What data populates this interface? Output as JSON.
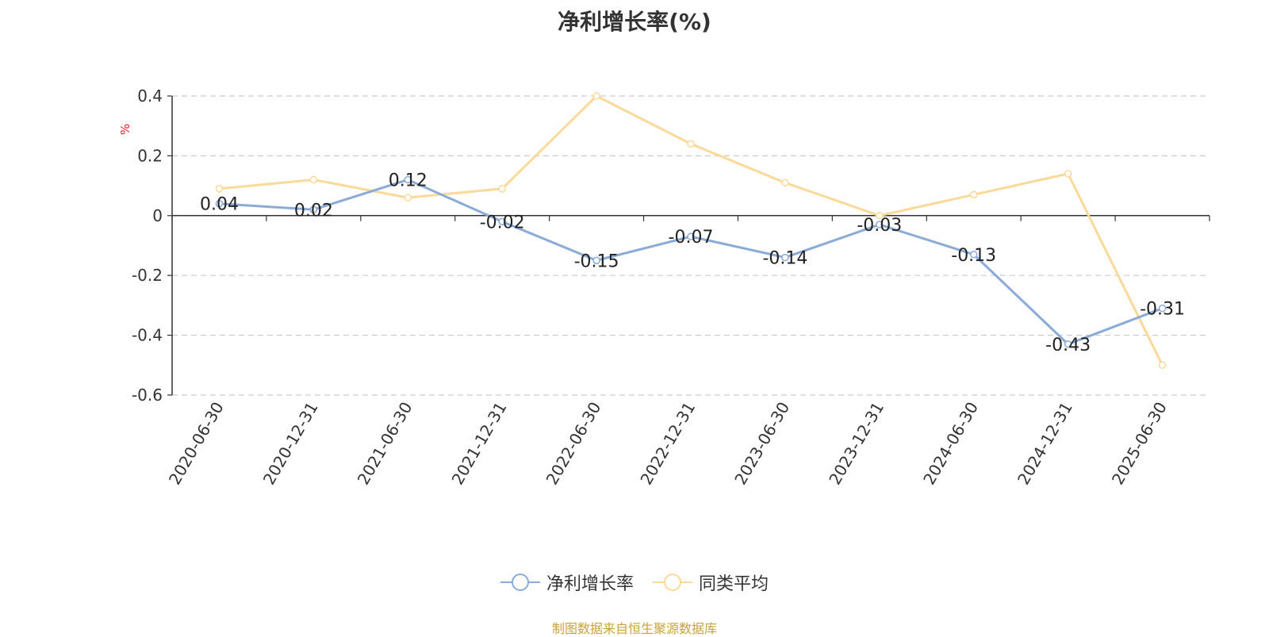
{
  "title": "净利增长率(%)",
  "source": "制图数据来自恒生聚源数据库",
  "colors": {
    "series1": "#8aaad7",
    "series2": "#fbd999",
    "axis": "#333333",
    "grid": "#cccccc",
    "unit": "#e41a1a"
  },
  "chart_data": {
    "type": "line",
    "ylabel": "%",
    "ylim": [
      -0.6,
      0.4
    ],
    "yticks": [
      0.4,
      0.2,
      0,
      -0.2,
      -0.4,
      -0.6
    ],
    "ytick_labels": [
      "0.4",
      "0.2",
      "0",
      "-0.2",
      "-0.4",
      "-0.6"
    ],
    "grid": true,
    "legend_position": "bottom-center",
    "categories": [
      "2020-06-30",
      "2020-12-31",
      "2021-06-30",
      "2021-12-31",
      "2022-06-30",
      "2022-12-31",
      "2023-06-30",
      "2023-12-31",
      "2024-06-30",
      "2024-12-31",
      "2025-06-30"
    ],
    "series": [
      {
        "name": "净利增长率",
        "values": [
          0.04,
          0.02,
          0.12,
          -0.02,
          -0.15,
          -0.07,
          -0.14,
          -0.03,
          -0.13,
          -0.43,
          -0.31
        ],
        "labels": [
          "0.04",
          "0.02",
          "0.12",
          "-0.02",
          "-0.15",
          "-0.07",
          "-0.14",
          "-0.03",
          "-0.13",
          "-0.43",
          "-0.31"
        ]
      },
      {
        "name": "同类平均",
        "values": [
          0.09,
          0.12,
          0.06,
          0.09,
          0.4,
          0.24,
          0.11,
          0.0,
          0.07,
          0.14,
          -0.5
        ]
      }
    ]
  }
}
